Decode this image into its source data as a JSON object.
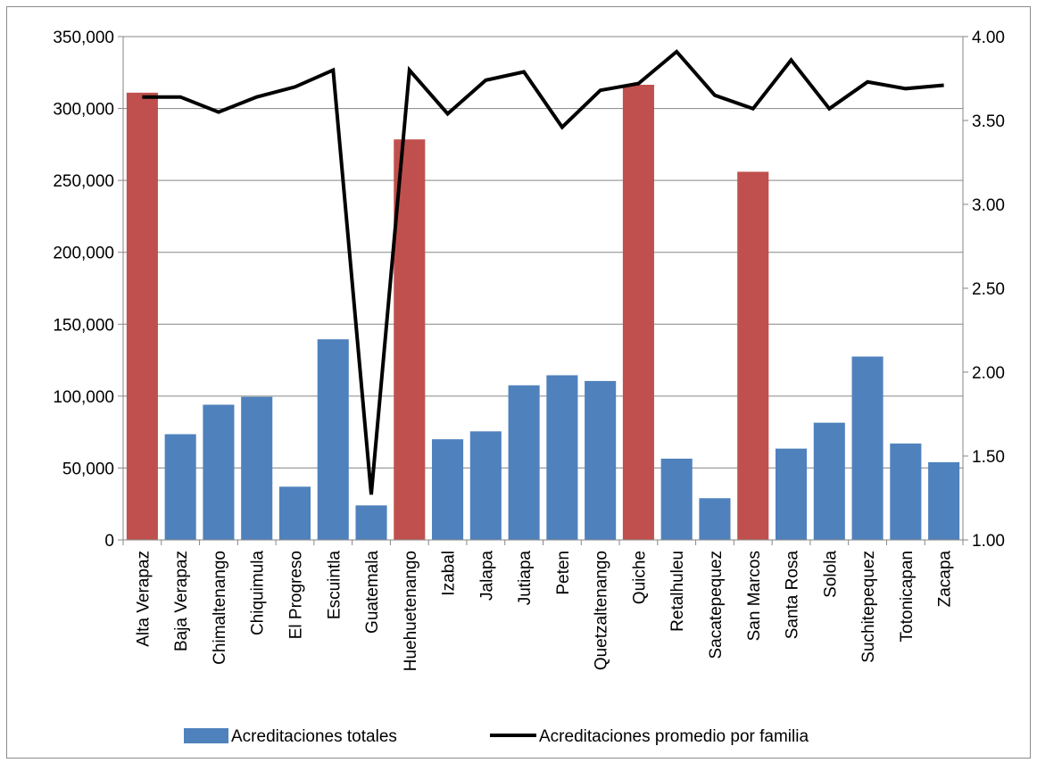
{
  "chart_data": {
    "type": "bar",
    "categories": [
      "Alta Verapaz",
      "Baja Verapaz",
      "Chimaltenango",
      "Chiquimula",
      "El Progreso",
      "Escuintla",
      "Guatemala",
      "Huehuetenango",
      "Izabal",
      "Jalapa",
      "Jutiapa",
      "Peten",
      "Quetzaltenango",
      "Quiche",
      "Retalhuleu",
      "Sacatepequez",
      "San Marcos",
      "Santa Rosa",
      "Solola",
      "Suchitepequez",
      "Totonicapan",
      "Zacapa"
    ],
    "series": [
      {
        "name": "Acreditaciones totales",
        "axis": "left",
        "type": "bar",
        "color": "#4f81bd",
        "values": [
          311000,
          73500,
          94000,
          99500,
          37000,
          139500,
          24000,
          278500,
          70000,
          75500,
          107500,
          114500,
          110500,
          316500,
          56500,
          29000,
          256000,
          63500,
          81500,
          127500,
          67000,
          54000
        ]
      },
      {
        "name": "Acreditaciones promedio por familia",
        "axis": "right",
        "type": "line",
        "color": "#000000",
        "values": [
          3.64,
          3.64,
          3.55,
          3.64,
          3.7,
          3.8,
          1.27,
          3.8,
          3.54,
          3.74,
          3.79,
          3.46,
          3.68,
          3.72,
          3.91,
          3.65,
          3.57,
          3.86,
          3.57,
          3.73,
          3.69,
          3.71
        ]
      }
    ],
    "highlight_color": "#c0504d",
    "highlighted_categories": [
      "Alta Verapaz",
      "Huehuetenango",
      "Quiche",
      "San Marcos"
    ],
    "y_left": {
      "min": 0,
      "max": 350000,
      "ticks": [
        "0",
        "50,000",
        "100,000",
        "150,000",
        "200,000",
        "250,000",
        "300,000",
        "350,000"
      ]
    },
    "y_right": {
      "min": 1.0,
      "max": 4.0,
      "ticks": [
        "1.00",
        "1.50",
        "2.00",
        "2.50",
        "3.00",
        "3.50",
        "4.00"
      ]
    },
    "grid": true,
    "legend_position": "bottom",
    "title": "",
    "xlabel": "",
    "ylabel": ""
  }
}
